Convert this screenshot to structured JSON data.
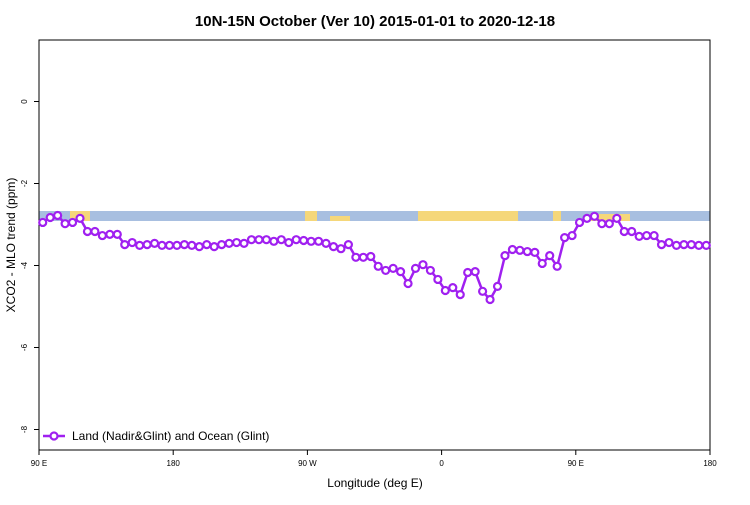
{
  "chart_data": {
    "type": "line",
    "title": "10N-15N October (Ver 10)   2015-01-01 to 2020-12-18",
    "x_label": "Longitude (deg E)",
    "y_label": "XCO2 - MLO trend (ppm)",
    "xlim": [
      90,
      540
    ],
    "ylim": [
      -8.5,
      1.5
    ],
    "xticks": [
      {
        "value": 90,
        "label": "90 E"
      },
      {
        "value": 180,
        "label": "180"
      },
      {
        "value": 270,
        "label": "90 W"
      },
      {
        "value": 360,
        "label": "0"
      },
      {
        "value": 450,
        "label": "90 E"
      },
      {
        "value": 540,
        "label": "180"
      }
    ],
    "yticks": [
      -8,
      -6,
      -4,
      -2,
      0
    ],
    "legend": "bottom-left",
    "x": [
      92.5,
      97.5,
      102.5,
      107.5,
      112.5,
      117.5,
      122.5,
      127.5,
      132.5,
      137.5,
      142.5,
      147.5,
      152.5,
      157.5,
      162.5,
      167.5,
      172.5,
      177.5,
      182.5,
      187.5,
      192.5,
      197.5,
      202.5,
      207.5,
      212.5,
      217.5,
      222.5,
      227.5,
      232.5,
      237.5,
      242.5,
      247.5,
      252.5,
      257.5,
      262.5,
      267.5,
      272.5,
      277.5,
      282.5,
      287.5,
      292.5,
      297.5,
      302.5,
      307.5,
      312.5,
      317.5,
      322.5,
      327.5,
      332.5,
      337.5,
      342.5,
      347.5,
      352.5,
      357.5,
      362.5,
      367.5,
      372.5,
      377.5,
      382.5,
      387.5,
      392.5,
      397.5,
      402.5,
      407.5,
      412.5,
      417.5,
      422.5,
      427.5,
      432.5,
      437.5,
      442.5,
      447.5,
      452.5,
      457.5,
      462.5,
      467.5,
      472.5,
      477.5,
      482.5,
      487.5,
      492.5,
      497.5,
      502.5,
      507.5,
      512.5,
      517.5,
      522.5,
      527.5,
      532.5,
      537.5
    ],
    "series": [
      {
        "name": "Land (Nadir&Glint) and Ocean (Glint)",
        "color": "#a020f0",
        "values": [
          -2.95,
          -2.83,
          -2.78,
          -2.98,
          -2.95,
          -2.85,
          -3.17,
          -3.17,
          -3.27,
          -3.24,
          -3.24,
          -3.49,
          -3.44,
          -3.51,
          -3.49,
          -3.46,
          -3.51,
          -3.51,
          -3.51,
          -3.49,
          -3.51,
          -3.54,
          -3.49,
          -3.54,
          -3.49,
          -3.46,
          -3.44,
          -3.46,
          -3.37,
          -3.37,
          -3.37,
          -3.41,
          -3.37,
          -3.44,
          -3.37,
          -3.39,
          -3.41,
          -3.41,
          -3.46,
          -3.54,
          -3.59,
          -3.49,
          -3.8,
          -3.8,
          -3.78,
          -4.02,
          -4.12,
          -4.07,
          -4.15,
          -4.44,
          -4.07,
          -3.98,
          -4.12,
          -4.34,
          -4.61,
          -4.54,
          -4.71,
          -4.17,
          -4.15,
          -4.63,
          -4.83,
          -4.51,
          -3.76,
          -3.61,
          -3.63,
          -3.66,
          -3.68,
          -3.95,
          -3.76,
          -4.02,
          -3.32,
          -3.27,
          -2.95,
          -2.85,
          -2.8,
          -2.98,
          -2.98,
          -2.85,
          -3.17,
          -3.17,
          -3.29,
          -3.27,
          -3.27,
          -3.49,
          -3.44,
          -3.51,
          -3.49,
          -3.49,
          -3.51,
          -3.51
        ]
      }
    ]
  }
}
